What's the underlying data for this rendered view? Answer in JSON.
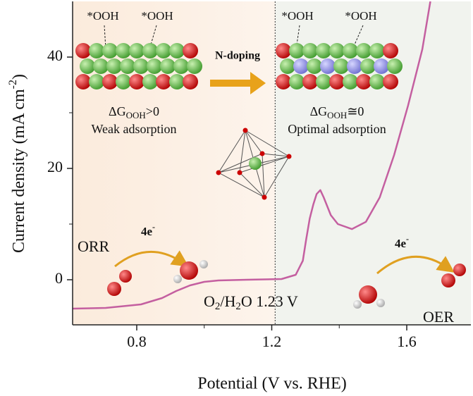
{
  "chart_data": {
    "type": "line",
    "x_label": "Potential  (V vs. RHE)",
    "y_label": [
      "Current density (mA cm",
      "-2",
      ")"
    ],
    "xlim": [
      0.61,
      1.79
    ],
    "ylim": [
      -8.1,
      50
    ],
    "xticks": [
      0.8,
      1.2,
      1.6
    ],
    "xminor": [
      1.0,
      1.4
    ],
    "yticks": [
      0,
      20,
      40
    ],
    "yminor": [
      10,
      30
    ],
    "divider_x": 1.21,
    "series": [
      {
        "color": "#c45fa0",
        "x": [
          0.61,
          0.708,
          0.8125,
          0.875,
          0.917,
          0.958,
          1.0,
          1.042,
          1.125,
          1.229,
          1.271,
          1.292,
          1.302,
          1.3125,
          1.323,
          1.333,
          1.344,
          1.354,
          1.375,
          1.396,
          1.4375,
          1.479,
          1.52,
          1.5625,
          1.604,
          1.646,
          1.67
        ],
        "values": [
          -5.19,
          -5.06,
          -4.43,
          -3.29,
          -2.03,
          -1.01,
          -0.38,
          -0.13,
          0,
          0.13,
          0.89,
          3.42,
          7.22,
          11.0,
          13.5,
          15.4,
          16.1,
          14.8,
          11.6,
          10.0,
          9.1,
          10.4,
          14.8,
          22.4,
          31.3,
          41.4,
          50
        ]
      }
    ],
    "annotations": {
      "ooh": [
        "*OOH",
        "*OOH",
        "*OOH",
        "*OOH"
      ],
      "n_doping": "N-doping",
      "dg_left": [
        "ΔG",
        "OOH",
        ">0"
      ],
      "weak": "Weak adsorption",
      "dg_right": [
        "ΔG",
        "OOH",
        "≅0"
      ],
      "optimal": "Optimal adsorption",
      "orr": "ORR",
      "oer": "OER",
      "electrons_left": [
        "4e",
        "-"
      ],
      "electrons_right": [
        "4e",
        "-"
      ],
      "potential": [
        "O",
        "2",
        "/H",
        "2",
        "O 1.23 V"
      ]
    }
  }
}
